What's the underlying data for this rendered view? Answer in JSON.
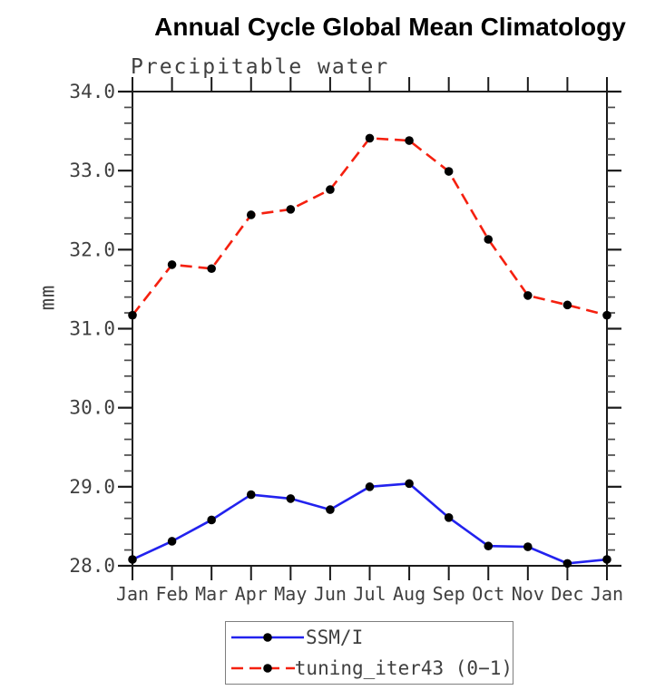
{
  "page": {
    "background": "#ffffff"
  },
  "chart_data": {
    "type": "line",
    "title": "Annual Cycle Global Mean Climatology",
    "subtitle": "Precipitable water",
    "ylabel": "mm",
    "xlabel": "",
    "categories": [
      "Jan",
      "Feb",
      "Mar",
      "Apr",
      "May",
      "Jun",
      "Jul",
      "Aug",
      "Sep",
      "Oct",
      "Nov",
      "Dec",
      "Jan"
    ],
    "ylim": [
      28.0,
      34.0
    ],
    "ytick_labels": [
      "28.0",
      "29.0",
      "30.0",
      "31.0",
      "32.0",
      "33.0",
      "34.0"
    ],
    "ytick_interval": 1.0,
    "ytick_minor_interval": 0.2,
    "grid": false,
    "legend_position": "bottom-center",
    "axis_color": "#1a1a1a",
    "minor_tick_color": "#4a4a4a",
    "label_color": "#3f3f3f",
    "legend_border_color": "#7e7e7e",
    "marker_color": "#000000",
    "series": [
      {
        "name": "SSM/I",
        "style": "solid",
        "color": "#2222ee",
        "marker": "dot",
        "values": [
          28.08,
          28.31,
          28.58,
          28.9,
          28.85,
          28.71,
          29.0,
          29.04,
          28.61,
          28.25,
          28.24,
          28.03,
          28.08
        ]
      },
      {
        "name": "tuning_iter43 (0−1)",
        "style": "dashed",
        "color": "#f5200f",
        "marker": "dot",
        "values": [
          31.17,
          31.81,
          31.76,
          32.44,
          32.51,
          32.76,
          33.41,
          33.38,
          32.99,
          32.13,
          31.42,
          31.3,
          31.17
        ]
      }
    ]
  }
}
